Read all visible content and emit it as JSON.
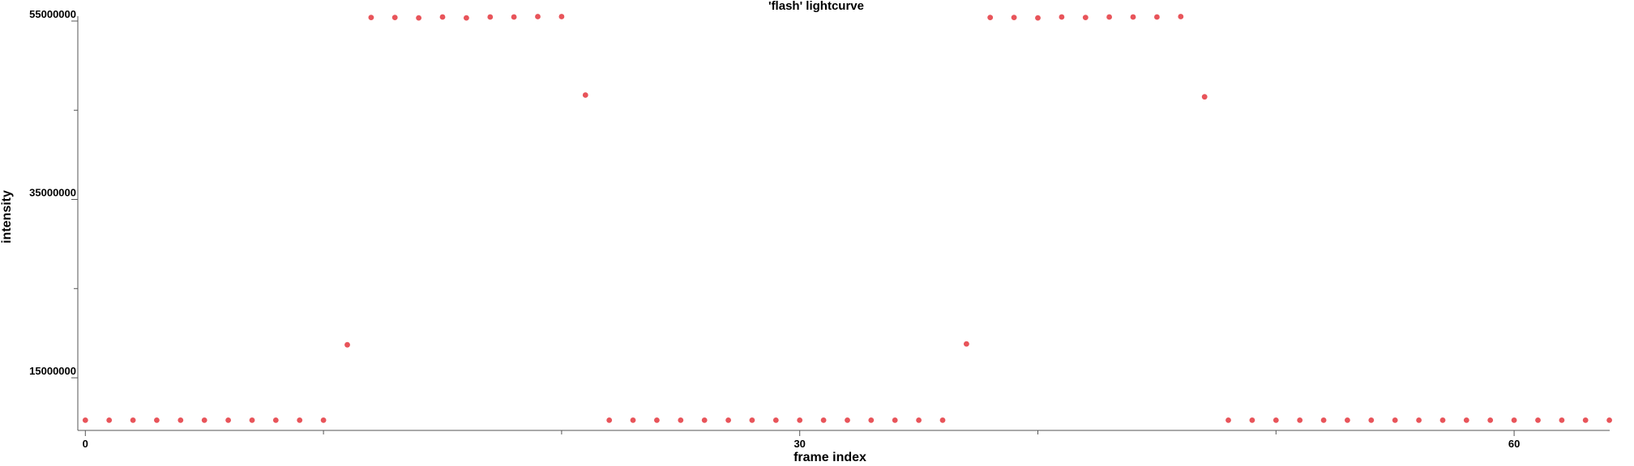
{
  "chart_data": {
    "type": "scatter",
    "title": "'flash' lightcurve",
    "xlabel": "frame index",
    "ylabel": "intensity",
    "xlim": [
      -0.5,
      64.5
    ],
    "ylim": [
      9000000,
      55500000
    ],
    "x_ticks_major": [
      0,
      30,
      60
    ],
    "x_ticks_minor": [
      10,
      20,
      40,
      50
    ],
    "x_tick_labels": [
      "0",
      "30",
      "60"
    ],
    "y_ticks_major": [
      15000000,
      35000000,
      55000000
    ],
    "y_ticks_minor": [
      25000000,
      45000000
    ],
    "y_tick_labels": [
      "15000000",
      "35000000",
      "55000000"
    ],
    "grid": false,
    "series": [
      {
        "color": "#e8545a",
        "x": [
          0,
          1,
          2,
          3,
          4,
          5,
          6,
          7,
          8,
          9,
          10,
          11,
          12,
          13,
          14,
          15,
          16,
          17,
          18,
          19,
          20,
          21,
          22,
          23,
          24,
          25,
          26,
          27,
          28,
          29,
          30,
          31,
          32,
          33,
          34,
          35,
          36,
          37,
          38,
          39,
          40,
          41,
          42,
          43,
          44,
          45,
          46,
          47,
          48,
          49,
          50,
          51,
          52,
          53,
          54,
          55,
          56,
          57,
          58,
          59,
          60,
          61,
          62,
          63,
          64
        ],
        "y": [
          10250000,
          10250000,
          10250000,
          10250000,
          10250000,
          10250000,
          10250000,
          10250000,
          10250000,
          10250000,
          10250000,
          18700000,
          55400000,
          55400000,
          55350000,
          55450000,
          55350000,
          55450000,
          55450000,
          55500000,
          55500000,
          46700000,
          10250000,
          10250000,
          10250000,
          10250000,
          10250000,
          10250000,
          10250000,
          10250000,
          10250000,
          10250000,
          10250000,
          10250000,
          10250000,
          10250000,
          10250000,
          18800000,
          55400000,
          55400000,
          55350000,
          55450000,
          55400000,
          55450000,
          55450000,
          55450000,
          55500000,
          46500000,
          10250000,
          10250000,
          10250000,
          10250000,
          10250000,
          10250000,
          10250000,
          10250000,
          10250000,
          10250000,
          10250000,
          10250000,
          10250000,
          10250000,
          10250000,
          10250000,
          10250000
        ]
      }
    ]
  }
}
